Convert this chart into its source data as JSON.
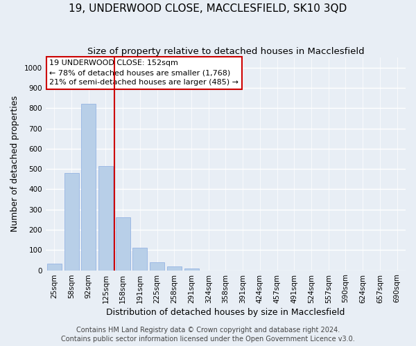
{
  "title": "19, UNDERWOOD CLOSE, MACCLESFIELD, SK10 3QD",
  "subtitle": "Size of property relative to detached houses in Macclesfield",
  "xlabel": "Distribution of detached houses by size in Macclesfield",
  "ylabel": "Number of detached properties",
  "bar_labels": [
    "25sqm",
    "58sqm",
    "92sqm",
    "125sqm",
    "158sqm",
    "191sqm",
    "225sqm",
    "258sqm",
    "291sqm",
    "324sqm",
    "358sqm",
    "391sqm",
    "424sqm",
    "457sqm",
    "491sqm",
    "524sqm",
    "557sqm",
    "590sqm",
    "624sqm",
    "657sqm",
    "690sqm"
  ],
  "bar_values": [
    33,
    480,
    820,
    515,
    263,
    110,
    40,
    18,
    8,
    0,
    0,
    0,
    0,
    0,
    0,
    0,
    0,
    0,
    0,
    0,
    0
  ],
  "bar_color": "#b8cfe8",
  "vline_color": "#cc0000",
  "vline_index": 3.5,
  "annotation_title": "19 UNDERWOOD CLOSE: 152sqm",
  "annotation_line1": "← 78% of detached houses are smaller (1,768)",
  "annotation_line2": "21% of semi-detached houses are larger (485) →",
  "annotation_box_color": "#ffffff",
  "annotation_box_edgecolor": "#cc0000",
  "ylim": [
    0,
    1050
  ],
  "yticks": [
    0,
    100,
    200,
    300,
    400,
    500,
    600,
    700,
    800,
    900,
    1000
  ],
  "footer_line1": "Contains HM Land Registry data © Crown copyright and database right 2024.",
  "footer_line2": "Contains public sector information licensed under the Open Government Licence v3.0.",
  "bg_color": "#e8eef5",
  "plot_bg_color": "#e8eef5",
  "grid_color": "#ffffff",
  "title_fontsize": 11,
  "subtitle_fontsize": 9.5,
  "axis_label_fontsize": 9,
  "tick_fontsize": 7.5,
  "footer_fontsize": 7
}
